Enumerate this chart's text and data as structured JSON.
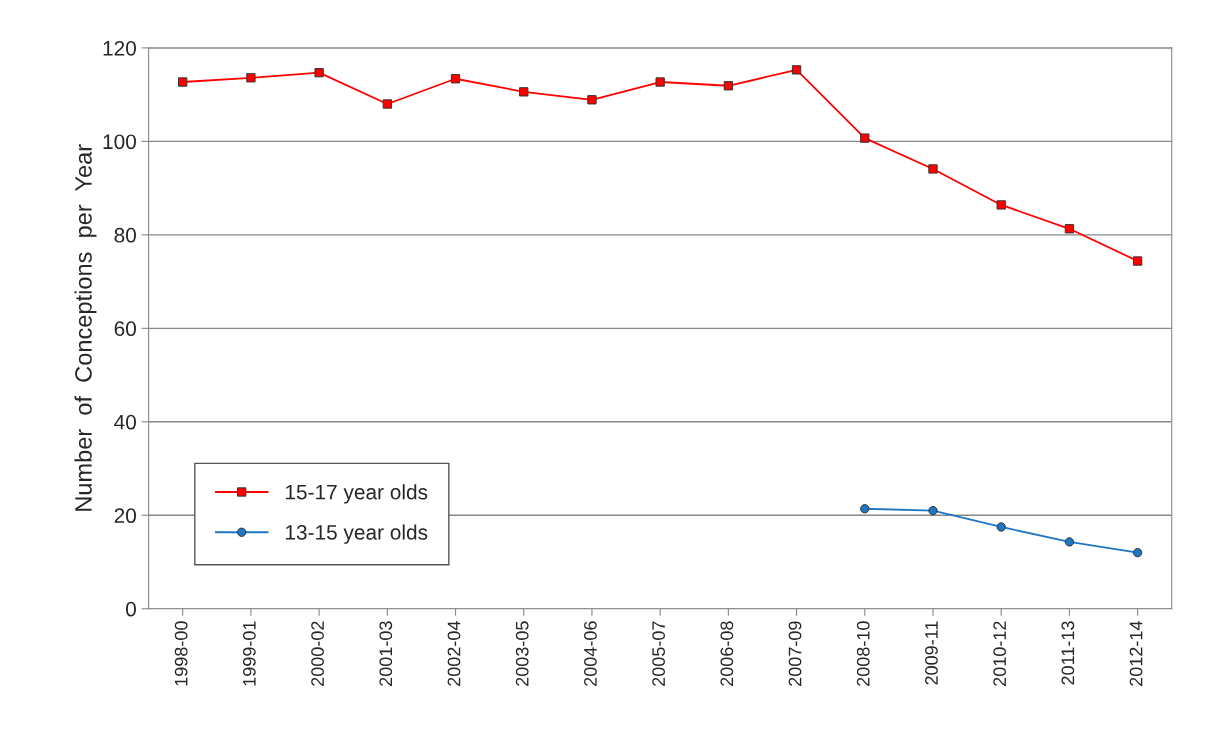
{
  "chart_data": {
    "type": "line",
    "ylabel": "Number  of  Conceptions  per  Year",
    "categories": [
      "1998-00",
      "1999-01",
      "2000-02",
      "2001-03",
      "2002-04",
      "2003-05",
      "2004-06",
      "2005-07",
      "2006-08",
      "2007-09",
      "2008-10",
      "2009-11",
      "2010-12",
      "2011-13",
      "2012-14"
    ],
    "series": [
      {
        "name": "15-17 year olds",
        "color": "#ff0000",
        "marker": "square",
        "values": [
          112.7,
          113.6,
          114.7,
          108.0,
          113.4,
          110.6,
          108.9,
          112.7,
          111.9,
          115.3,
          100.7,
          94.1,
          86.4,
          81.3,
          74.4
        ]
      },
      {
        "name": "13-15 year olds",
        "color": "#1f77c4",
        "marker": "circle",
        "values": [
          null,
          null,
          null,
          null,
          null,
          null,
          null,
          null,
          null,
          null,
          21.4,
          21.0,
          17.5,
          14.3,
          12.0
        ]
      }
    ],
    "ylim": [
      0,
      120
    ],
    "yticks": [
      0,
      20,
      40,
      60,
      80,
      100,
      120
    ],
    "grid": "y",
    "legend": "bottom left"
  }
}
